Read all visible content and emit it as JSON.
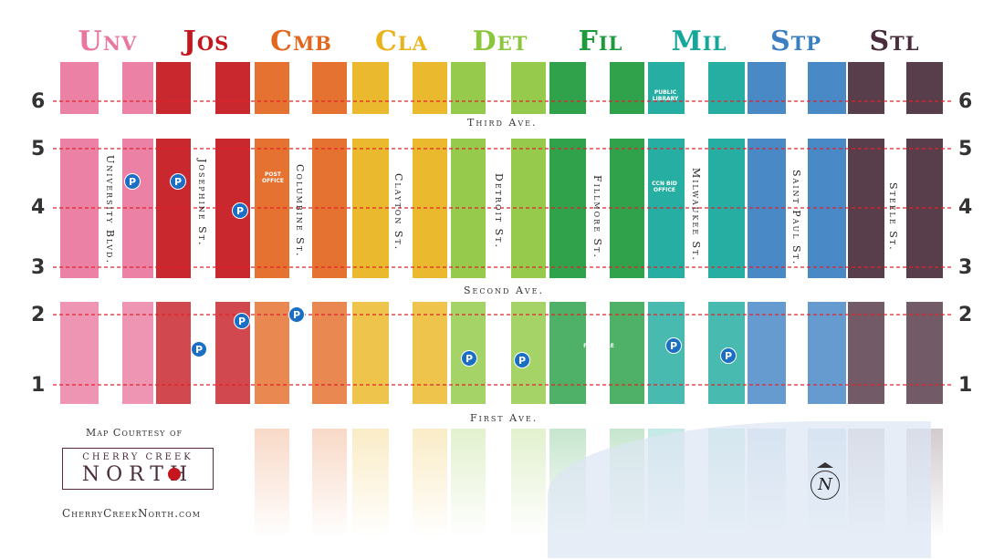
{
  "columns": [
    {
      "id": "unv",
      "label": "Unv",
      "color": "#e9779e"
    },
    {
      "id": "jos",
      "label": "Jos",
      "color": "#c4161c"
    },
    {
      "id": "cmb",
      "label": "Cmb",
      "color": "#e3661f"
    },
    {
      "id": "cla",
      "label": "Cla",
      "color": "#e9b31b"
    },
    {
      "id": "det",
      "label": "Det",
      "color": "#8cc63e"
    },
    {
      "id": "fil",
      "label": "Fil",
      "color": "#1e9a3c"
    },
    {
      "id": "mil",
      "label": "Mil",
      "color": "#14a79a"
    },
    {
      "id": "stp",
      "label": "Stp",
      "color": "#3a7fc1"
    },
    {
      "id": "stl",
      "label": "Stl",
      "color": "#4a2d3c"
    }
  ],
  "rows": {
    "left": [
      "6",
      "5",
      "4",
      "3",
      "2",
      "1"
    ],
    "right": [
      "6",
      "5",
      "4",
      "3",
      "2",
      "1"
    ]
  },
  "avenues": {
    "third": "Third Ave.",
    "second": "Second Ave.",
    "first": "First Ave."
  },
  "streets": {
    "university": "University Blvd.",
    "josephine": "Josephine St.",
    "columbine": "Columbine St.",
    "clayton": "Clayton St.",
    "detroit": "Detroit St.",
    "fillmore": "Fillmore St.",
    "milwaukee": "Milwaukee St.",
    "saint_paul": "Saint Paul St.",
    "steele": "Steele St."
  },
  "buildings": {
    "post_office": "POST OFFICE",
    "public_library": "PUBLIC LIBRARY",
    "ccn_bid_office": "CCN BID OFFICE",
    "fillmore_plaza": "FILLMORE PLAZA"
  },
  "parking_symbol": "P",
  "credit": {
    "courtesy": "Map Courtesy of",
    "logo_top": "CHERRY CREEK",
    "logo_bottom": "NORTH",
    "website": "CherryCreekNorth.com"
  },
  "compass_label": "N"
}
